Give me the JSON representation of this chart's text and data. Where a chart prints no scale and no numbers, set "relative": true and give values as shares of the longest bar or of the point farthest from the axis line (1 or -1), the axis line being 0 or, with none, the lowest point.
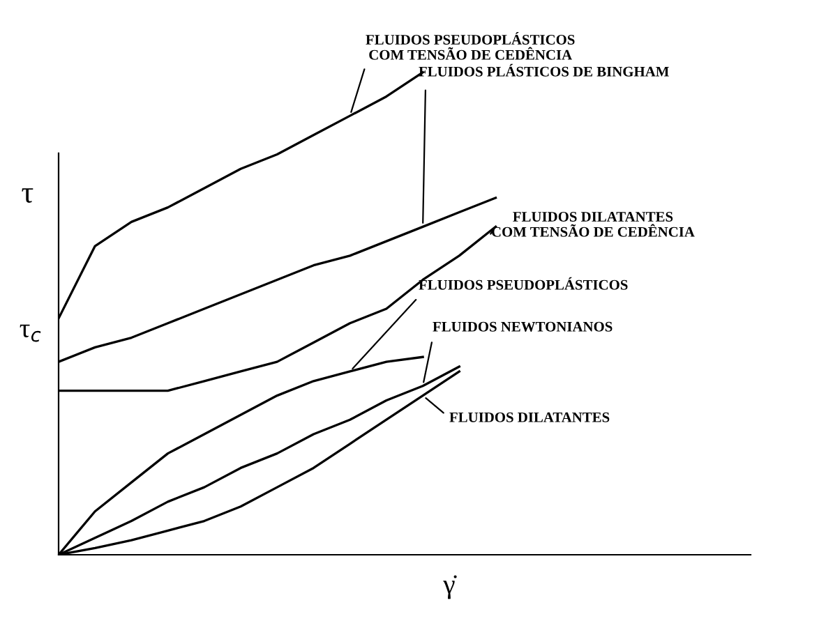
{
  "chart_data": {
    "type": "line",
    "relative": true,
    "ylabel": "τ",
    "xlabel": "γ̇",
    "categories": [
      null,
      null,
      null,
      null,
      null,
      null,
      null,
      null,
      null,
      null,
      null,
      null,
      null,
      null,
      null,
      null,
      null,
      null,
      null,
      null
    ],
    "series": [
      {
        "name": "FLUIDOS PSEUDOPLÁSTICOS\nCOM TENSÃO DE CEDÊNCIA",
        "color": "#000000",
        "values": [
          0.49,
          0.64,
          0.69,
          0.72,
          0.76,
          0.8,
          0.83,
          0.87,
          0.91,
          0.95,
          1.0,
          null,
          null,
          null,
          null,
          null,
          null,
          null,
          null,
          null
        ]
      },
      {
        "name": "FLUIDOS PLÁSTICOS DE BINGHAM",
        "color": "#000000",
        "values": [
          0.4,
          0.43,
          0.45,
          0.48,
          0.51,
          0.54,
          0.57,
          0.6,
          0.62,
          0.65,
          0.68,
          0.71,
          0.74,
          null,
          null,
          null,
          null,
          null,
          null,
          null
        ]
      },
      {
        "name": "FLUIDOS DILATANTES\nCOM TENSÃO DE CEDÊNCIA",
        "color": "#000000",
        "values": [
          0.34,
          0.34,
          0.34,
          0.34,
          0.36,
          0.38,
          0.4,
          0.44,
          0.48,
          0.51,
          0.57,
          0.62,
          0.68,
          null,
          null,
          null,
          null,
          null,
          null,
          null
        ]
      },
      {
        "name": "FLUIDOS PSEUDOPLÁSTICOS",
        "color": "#000000",
        "values": [
          0,
          0.09,
          0.15,
          0.21,
          0.25,
          0.29,
          0.33,
          0.36,
          0.38,
          0.4,
          0.41,
          null,
          null,
          null,
          null,
          null,
          null,
          null,
          null,
          null
        ]
      },
      {
        "name": "FLUIDOS NEWTONIANOS",
        "color": "#000000",
        "values": [
          0,
          0.035,
          0.07,
          0.11,
          0.14,
          0.18,
          0.21,
          0.25,
          0.28,
          0.32,
          0.35,
          0.39,
          null,
          null,
          null,
          null,
          null,
          null,
          null,
          null
        ]
      },
      {
        "name": "FLUIDOS DILATANTES",
        "color": "#000000",
        "values": [
          0,
          0.014,
          0.03,
          0.05,
          0.07,
          0.1,
          0.14,
          0.18,
          0.23,
          0.28,
          0.33,
          0.38,
          null,
          null,
          null,
          null,
          null,
          null,
          null,
          null
        ]
      }
    ],
    "annotations": [
      "τ$_{c}$"
    ]
  }
}
